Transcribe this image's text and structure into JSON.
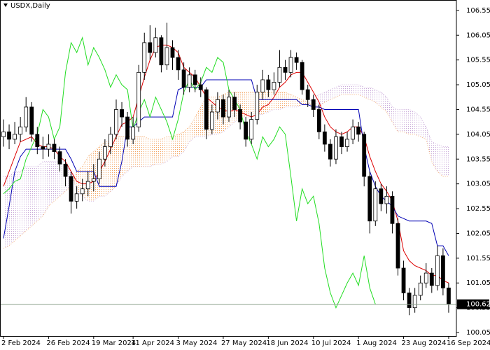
{
  "chart_data": {
    "type": "candlestick",
    "title": "USDX,Daily",
    "categories": [
      "2 Feb 2024",
      null,
      null,
      null,
      null,
      null,
      null,
      null,
      "26 Feb 2024",
      null,
      null,
      null,
      null,
      null,
      null,
      null,
      "19 Mar 2024",
      null,
      null,
      null,
      null,
      null,
      null,
      "11 Apr 2024",
      null,
      null,
      null,
      null,
      null,
      null,
      null,
      "3 May 2024",
      null,
      null,
      null,
      null,
      null,
      null,
      null,
      "27 May 2024",
      null,
      null,
      null,
      null,
      null,
      null,
      null,
      "18 Jun 2024",
      null,
      null,
      null,
      null,
      null,
      null,
      null,
      "10 Jul 2024",
      null,
      null,
      null,
      null,
      null,
      null,
      null,
      "1 Aug 2024",
      null,
      null,
      null,
      null,
      null,
      null,
      null,
      "23 Aug 2024",
      null,
      null,
      null,
      null,
      null,
      null,
      null,
      "16 Sep 2024"
    ],
    "ohlc": [
      [
        104.0,
        104.35,
        103.8,
        104.1
      ],
      [
        104.1,
        104.25,
        103.75,
        103.95
      ],
      [
        103.95,
        104.3,
        103.85,
        104.05
      ],
      [
        104.05,
        104.4,
        103.9,
        104.2
      ],
      [
        104.2,
        104.8,
        104.1,
        104.6
      ],
      [
        104.6,
        104.7,
        103.9,
        104.05
      ],
      [
        104.05,
        104.2,
        103.65,
        103.8
      ],
      [
        103.8,
        104.0,
        103.55,
        103.75
      ],
      [
        103.75,
        104.05,
        103.6,
        103.85
      ],
      [
        103.85,
        103.95,
        103.55,
        103.7
      ],
      [
        103.7,
        103.8,
        103.3,
        103.45
      ],
      [
        103.45,
        103.55,
        103.0,
        103.2
      ],
      [
        103.2,
        103.3,
        102.45,
        102.7
      ],
      [
        102.7,
        103.0,
        102.55,
        102.85
      ],
      [
        102.85,
        103.15,
        102.7,
        102.95
      ],
      [
        102.95,
        103.3,
        102.8,
        103.1
      ],
      [
        103.1,
        103.45,
        102.9,
        103.15
      ],
      [
        103.15,
        103.7,
        103.05,
        103.55
      ],
      [
        103.55,
        103.95,
        103.4,
        103.8
      ],
      [
        103.8,
        104.2,
        103.65,
        104.05
      ],
      [
        104.05,
        104.75,
        103.95,
        104.55
      ],
      [
        104.55,
        104.7,
        104.2,
        104.4
      ],
      [
        104.4,
        104.5,
        103.8,
        103.95
      ],
      [
        103.95,
        104.4,
        103.85,
        104.2
      ],
      [
        104.2,
        105.45,
        104.1,
        105.3
      ],
      [
        105.3,
        106.1,
        105.15,
        105.9
      ],
      [
        105.9,
        106.25,
        105.55,
        105.7
      ],
      [
        105.7,
        106.2,
        105.6,
        106.0
      ],
      [
        106.0,
        106.05,
        105.3,
        105.45
      ],
      [
        105.45,
        106.3,
        105.35,
        105.8
      ],
      [
        105.8,
        105.95,
        105.35,
        105.6
      ],
      [
        105.6,
        105.75,
        105.15,
        105.35
      ],
      [
        105.35,
        105.5,
        104.85,
        105.0
      ],
      [
        105.0,
        105.4,
        104.9,
        105.25
      ],
      [
        105.25,
        105.35,
        104.9,
        105.05
      ],
      [
        105.05,
        105.2,
        104.8,
        104.95
      ],
      [
        104.95,
        105.0,
        103.95,
        104.15
      ],
      [
        104.15,
        104.65,
        104.05,
        104.5
      ],
      [
        104.5,
        104.9,
        104.35,
        104.75
      ],
      [
        104.75,
        104.85,
        104.25,
        104.4
      ],
      [
        104.4,
        104.95,
        104.3,
        104.8
      ],
      [
        104.8,
        104.9,
        104.4,
        104.55
      ],
      [
        104.55,
        104.65,
        104.15,
        104.3
      ],
      [
        104.3,
        104.4,
        103.8,
        103.95
      ],
      [
        103.95,
        104.5,
        103.85,
        104.35
      ],
      [
        104.35,
        105.05,
        104.25,
        104.9
      ],
      [
        104.9,
        105.35,
        104.75,
        105.15
      ],
      [
        105.15,
        105.25,
        104.8,
        104.95
      ],
      [
        104.95,
        105.3,
        104.85,
        105.1
      ],
      [
        105.1,
        105.75,
        105.0,
        105.4
      ],
      [
        105.4,
        105.55,
        105.15,
        105.3
      ],
      [
        105.3,
        105.75,
        105.2,
        105.6
      ],
      [
        105.6,
        105.7,
        105.35,
        105.5
      ],
      [
        105.5,
        105.55,
        104.85,
        104.95
      ],
      [
        104.95,
        105.05,
        104.6,
        104.75
      ],
      [
        104.75,
        104.85,
        104.4,
        104.55
      ],
      [
        104.55,
        104.65,
        103.95,
        104.1
      ],
      [
        104.1,
        104.25,
        103.7,
        103.85
      ],
      [
        103.85,
        103.95,
        103.4,
        103.55
      ],
      [
        103.55,
        104.15,
        103.45,
        104.0
      ],
      [
        104.0,
        104.1,
        103.65,
        103.8
      ],
      [
        103.8,
        104.1,
        103.7,
        103.95
      ],
      [
        103.95,
        104.35,
        103.85,
        104.2
      ],
      [
        104.2,
        104.3,
        103.9,
        104.05
      ],
      [
        104.05,
        104.1,
        103.0,
        103.2
      ],
      [
        103.2,
        103.3,
        102.05,
        102.3
      ],
      [
        102.3,
        103.1,
        102.2,
        102.95
      ],
      [
        102.95,
        103.05,
        102.5,
        102.65
      ],
      [
        102.65,
        103.0,
        102.45,
        102.8
      ],
      [
        102.8,
        102.9,
        102.05,
        102.25
      ],
      [
        102.25,
        102.35,
        101.2,
        101.35
      ],
      [
        101.35,
        101.5,
        100.7,
        100.85
      ],
      [
        100.85,
        100.95,
        100.4,
        100.55
      ],
      [
        100.55,
        100.95,
        100.45,
        100.8
      ],
      [
        100.8,
        101.2,
        100.7,
        101.05
      ],
      [
        101.05,
        101.45,
        100.95,
        101.25
      ],
      [
        101.25,
        101.35,
        100.85,
        101.0
      ],
      [
        101.0,
        101.8,
        100.9,
        101.6
      ],
      [
        101.6,
        101.75,
        100.8,
        100.95
      ],
      [
        100.95,
        101.05,
        100.45,
        100.62
      ]
    ],
    "bull_color": "#ffffff",
    "bear_color": "#000000",
    "series": [
      {
        "color": "#dd0000",
        "values": [
          103.0,
          103.3,
          103.6,
          103.9,
          103.95,
          104.0,
          103.85,
          103.8,
          103.8,
          103.75,
          103.6,
          103.5,
          103.3,
          103.1,
          103.05,
          103.05,
          103.1,
          103.3,
          103.5,
          103.75,
          104.0,
          104.25,
          104.3,
          104.4,
          104.8,
          105.2,
          105.55,
          105.8,
          105.85,
          105.85,
          105.8,
          105.7,
          105.4,
          105.3,
          105.2,
          105.0,
          104.8,
          104.7,
          104.6,
          104.55,
          104.5,
          104.55,
          104.5,
          104.45,
          104.4,
          104.45,
          104.6,
          104.65,
          104.8,
          105.0,
          105.1,
          105.25,
          105.3,
          105.3,
          105.1,
          104.9,
          104.7,
          104.4,
          104.2,
          104.1,
          104.05,
          104.1,
          104.2,
          104.2,
          104.0,
          103.6,
          103.3,
          103.05,
          102.9,
          102.7,
          102.3,
          101.7,
          101.5,
          101.4,
          101.35,
          101.3,
          101.2,
          101.2,
          101.1,
          101.05
        ]
      },
      {
        "color": "#0000b4",
        "values": [
          101.95,
          102.6,
          103.3,
          103.6,
          103.75,
          103.75,
          103.75,
          103.75,
          103.75,
          103.75,
          103.75,
          103.75,
          103.55,
          103.3,
          103.3,
          103.3,
          103.3,
          103.0,
          103.0,
          103.0,
          103.0,
          103.5,
          104.2,
          104.2,
          104.3,
          104.4,
          104.4,
          104.4,
          104.4,
          104.4,
          104.4,
          104.95,
          105.0,
          105.0,
          105.0,
          105.0,
          105.15,
          105.15,
          105.15,
          105.15,
          105.15,
          105.15,
          105.15,
          105.15,
          105.15,
          104.75,
          104.75,
          104.75,
          104.75,
          104.75,
          104.75,
          104.75,
          104.75,
          104.65,
          104.65,
          104.6,
          104.6,
          104.55,
          104.55,
          104.55,
          104.55,
          104.55,
          104.55,
          104.55,
          103.8,
          103.3,
          103.0,
          102.8,
          102.7,
          102.6,
          102.4,
          102.35,
          102.3,
          102.3,
          102.3,
          102.3,
          102.25,
          101.8,
          101.8,
          101.6
        ]
      },
      {
        "color": "#22dd22",
        "values": [
          102.85,
          102.95,
          103.1,
          103.15,
          103.55,
          103.8,
          104.05,
          104.55,
          104.4,
          103.95,
          104.2,
          105.3,
          105.9,
          105.7,
          106.0,
          105.45,
          105.8,
          105.6,
          105.35,
          105.0,
          105.25,
          105.05,
          104.95,
          104.15,
          104.5,
          104.75,
          104.4,
          104.8,
          104.55,
          104.3,
          103.95,
          104.35,
          104.9,
          105.15,
          104.95,
          105.1,
          105.4,
          105.3,
          105.6,
          105.5,
          104.95,
          104.75,
          104.55,
          104.1,
          103.85,
          103.55,
          104.0,
          103.8,
          103.95,
          104.2,
          104.05,
          103.2,
          102.3,
          102.95,
          102.65,
          102.8,
          102.25,
          101.35,
          100.85,
          100.55,
          100.8,
          101.05,
          101.25,
          101.0,
          101.6,
          100.95,
          100.62,
          null,
          null,
          null,
          null,
          null,
          null,
          null,
          null,
          null,
          null,
          null,
          null,
          null
        ]
      }
    ],
    "cloud": {
      "up_color": "#f4a460",
      "down_color": "#c8a8d8",
      "span_a": [
        101.75,
        101.8,
        101.9,
        102.0,
        102.1,
        102.2,
        102.3,
        102.4,
        102.6,
        102.7,
        102.8,
        102.9,
        103.0,
        103.3,
        103.4,
        103.6,
        103.7,
        103.8,
        103.9,
        103.9,
        104.0,
        104.0,
        104.0,
        104.0,
        104.0,
        104.0,
        103.95,
        103.95,
        103.95,
        104.0,
        104.0,
        104.05,
        104.1,
        104.2,
        104.4,
        104.6,
        104.8,
        104.8,
        104.8,
        104.85,
        104.9,
        104.9,
        104.9,
        104.9,
        104.9,
        104.9,
        104.9,
        104.9,
        104.9,
        104.9,
        104.9,
        104.85,
        104.8,
        104.75,
        104.7,
        104.6,
        104.6,
        104.7,
        104.75,
        104.8,
        104.85,
        104.85,
        104.85,
        104.85,
        104.8,
        104.75,
        104.7,
        104.6,
        104.5,
        104.3,
        104.1,
        104.1,
        104.05,
        104.05,
        104.0,
        103.95,
        103.5,
        103.3,
        103.2,
        103.2
      ],
      "span_b": [
        103.2,
        103.2,
        103.3,
        103.3,
        103.4,
        103.4,
        103.4,
        103.5,
        103.5,
        103.5,
        103.5,
        103.5,
        103.3,
        102.9,
        102.8,
        102.7,
        102.7,
        102.8,
        102.8,
        102.9,
        103.0,
        103.2,
        103.3,
        103.4,
        103.4,
        103.4,
        103.4,
        103.45,
        103.45,
        103.5,
        103.6,
        103.6,
        103.7,
        103.9,
        104.0,
        104.0,
        104.0,
        104.05,
        104.05,
        104.1,
        104.2,
        104.3,
        104.4,
        104.4,
        104.4,
        104.45,
        104.45,
        104.5,
        104.55,
        104.55,
        104.6,
        104.6,
        104.6,
        104.65,
        104.65,
        104.8,
        104.85,
        104.9,
        104.95,
        105.0,
        105.05,
        105.05,
        105.05,
        105.05,
        105.0,
        105.0,
        104.95,
        104.9,
        104.8,
        104.6,
        104.55,
        104.55,
        104.55,
        104.5,
        104.4,
        104.2,
        103.9,
        103.85,
        103.8,
        103.8
      ]
    },
    "last_price": 100.62,
    "last_price_color": "#8ca08c",
    "ylim": [
      99.98,
      106.76
    ],
    "yticks": [
      100.05,
      100.55,
      101.05,
      101.55,
      102.05,
      102.55,
      103.05,
      103.55,
      104.05,
      104.55,
      105.05,
      105.55,
      106.05,
      106.55
    ]
  }
}
